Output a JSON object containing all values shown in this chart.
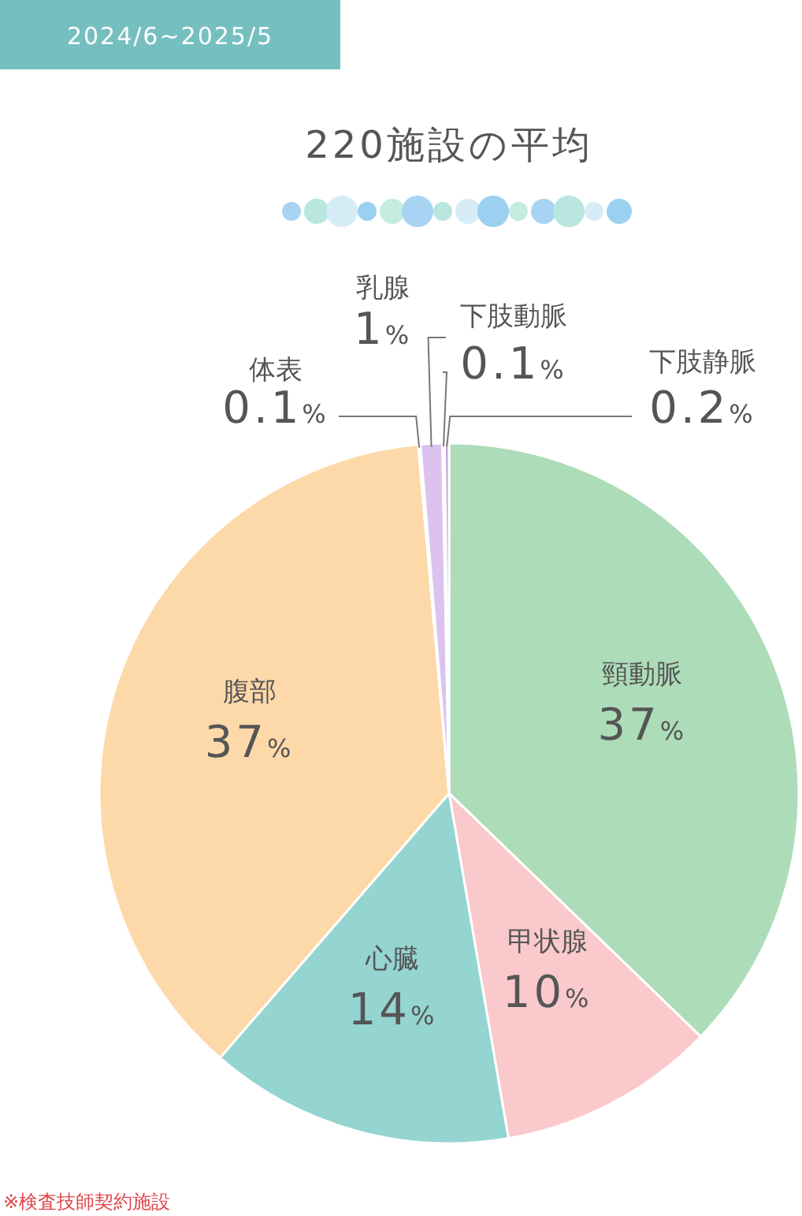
{
  "chart_data": {
    "type": "pie",
    "title": "220施設の平均",
    "subtitle": "2024/6~2025/5",
    "categories": [
      "頸動脈",
      "甲状腺",
      "心臓",
      "腹部",
      "体表",
      "乳腺",
      "下肢動脈",
      "下肢静脈"
    ],
    "values": [
      37,
      10,
      14,
      37,
      0.1,
      1,
      0.1,
      0.2
    ],
    "colors": [
      "#addcb8",
      "#f9c9cc",
      "#94d4d1",
      "#fdd9a9",
      "#d8d8d8",
      "#dcc3ef",
      "#b7b5e6",
      "#c9a3da"
    ],
    "value_labels": [
      "37%",
      "10%",
      "14%",
      "37%",
      "0.1%",
      "1%",
      "0.1%",
      "0.2%"
    ],
    "legend": false,
    "annotations": [
      "※検査技師契約施設"
    ]
  }
}
